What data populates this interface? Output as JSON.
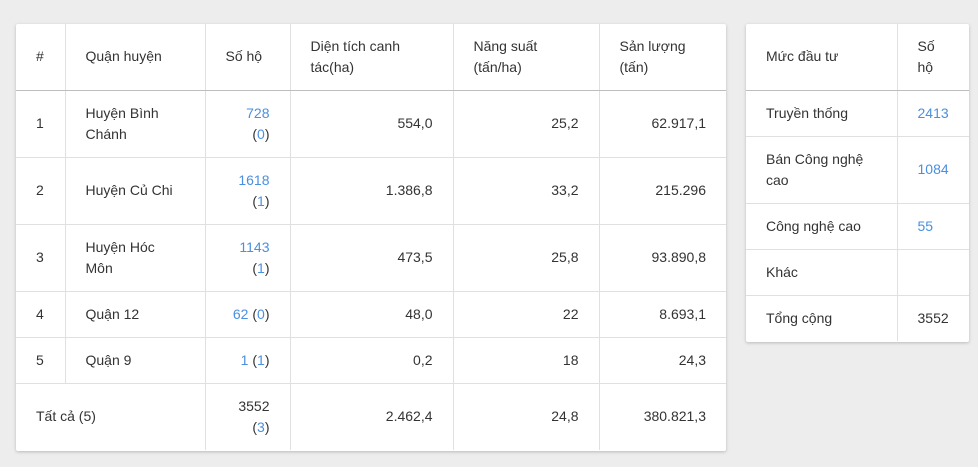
{
  "main_table": {
    "headers": {
      "index": "#",
      "district": "Quận huyện",
      "households": "Số hộ",
      "area_l1": "Diện tích canh",
      "area_l2": "tác(ha)",
      "yield_l1": "Năng suất",
      "yield_l2": "(tấn/ha)",
      "output_l1": "Sản lượng",
      "output_l2": "(tấn)"
    },
    "rows": [
      {
        "index": "1",
        "district_l1": "Huyện Bình",
        "district_l2": "Chánh",
        "households": "728",
        "sub": "0",
        "area": "554,0",
        "yield": "25,2",
        "output": "62.917,1"
      },
      {
        "index": "2",
        "district_l1": "Huyện Củ Chi",
        "district_l2": "",
        "households": "1618",
        "sub": "1",
        "area": "1.386,8",
        "yield": "33,2",
        "output": "215.296"
      },
      {
        "index": "3",
        "district_l1": "Huyện Hóc",
        "district_l2": "Môn",
        "households": "1143",
        "sub": "1",
        "area": "473,5",
        "yield": "25,8",
        "output": "93.890,8"
      },
      {
        "index": "4",
        "district_l1": "Quận 12",
        "district_l2": "",
        "households": "62",
        "sub": "0",
        "area": "48,0",
        "yield": "22",
        "output": "8.693,1"
      },
      {
        "index": "5",
        "district_l1": "Quận 9",
        "district_l2": "",
        "households": "1",
        "sub": "1",
        "area": "0,2",
        "yield": "18",
        "output": "24,3"
      }
    ],
    "total": {
      "label": "Tất cả (5)",
      "households": "3552",
      "sub": "3",
      "area": "2.462,4",
      "yield": "24,8",
      "output": "380.821,3"
    }
  },
  "side_table": {
    "headers": {
      "level": "Mức đầu tư",
      "households_l1": "Số",
      "households_l2": "hộ"
    },
    "rows": [
      {
        "level_l1": "Truyền thống",
        "level_l2": "",
        "households": "2413"
      },
      {
        "level_l1": "Bán Công nghệ",
        "level_l2": "cao",
        "households": "1084"
      },
      {
        "level_l1": "Công nghệ cao",
        "level_l2": "",
        "households": "55"
      },
      {
        "level_l1": "Khác",
        "level_l2": "",
        "households": ""
      }
    ],
    "total": {
      "label": "Tổng cộng",
      "households": "3552"
    }
  },
  "colors": {
    "link": "#4a8fe0",
    "background": "#ededed",
    "card": "#ffffff"
  }
}
